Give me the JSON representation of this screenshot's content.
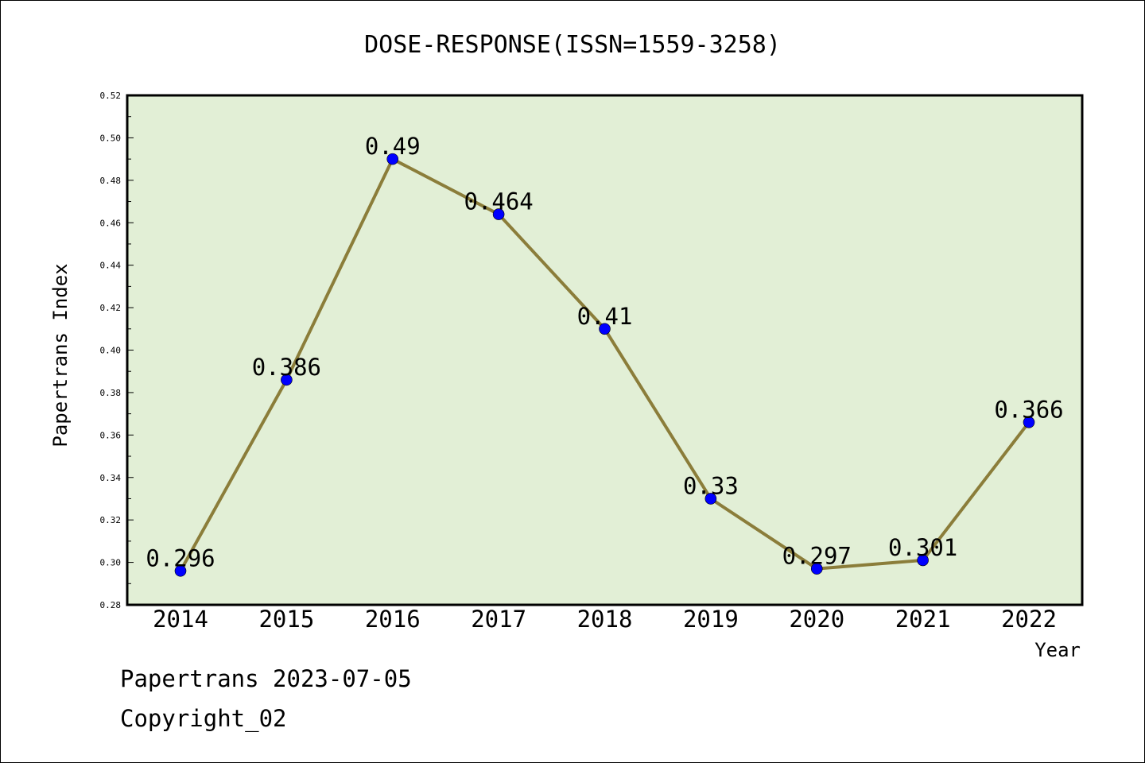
{
  "chart_data": {
    "type": "line",
    "title": "DOSE-RESPONSE(ISSN=1559-3258)",
    "xlabel": "Year",
    "ylabel": "Papertrans Index",
    "categories": [
      "2014",
      "2015",
      "2016",
      "2017",
      "2018",
      "2019",
      "2020",
      "2021",
      "2022"
    ],
    "values": [
      0.296,
      0.386,
      0.49,
      0.464,
      0.41,
      0.33,
      0.297,
      0.301,
      0.366
    ],
    "data_labels": [
      "0.296",
      "0.386",
      "0.49",
      "0.464",
      "0.41",
      "0.33",
      "0.297",
      "0.301",
      "0.366"
    ],
    "ylim": [
      0.28,
      0.52
    ],
    "yticks": [
      "0.28",
      "0.30",
      "0.32",
      "0.34",
      "0.36",
      "0.38",
      "0.40",
      "0.42",
      "0.44",
      "0.46",
      "0.48",
      "0.50",
      "0.52"
    ],
    "grid": false,
    "legend": "none",
    "colors": {
      "plot_background": "#e2efd6",
      "line": "#8b7d3a",
      "marker": "#0000ff"
    }
  },
  "footer": {
    "line1": "Papertrans 2023-07-05",
    "line2": "Copyright_02"
  }
}
